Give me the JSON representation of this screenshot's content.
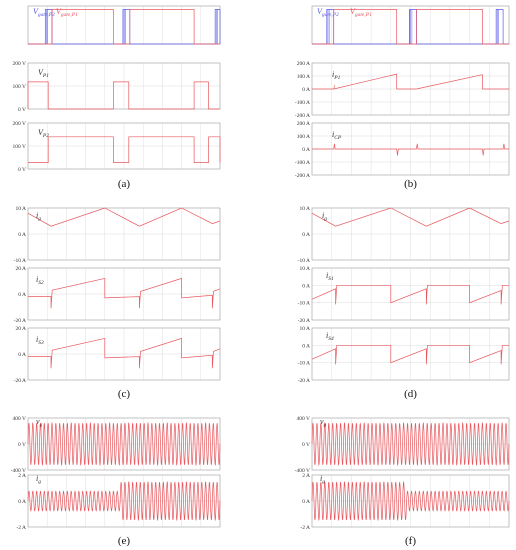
{
  "colors": {
    "trace": "#e8585e",
    "trace2": "#5a5ae6",
    "grid": "#c8c8c8",
    "frame": "#999999"
  },
  "chart_data": [
    {
      "type": "line",
      "caption": "(a)",
      "panels": [
        {
          "ticks": [],
          "traces": [
            {
              "color": "blue",
              "label": {
                "main": "V",
                "sub": "gate,P2"
              },
              "shape": "pulses",
              "base": 0,
              "high": 1,
              "cycles": [
                [
                  0.09,
                  0.125
                ],
                [
                  0.495,
                  0.53
                ],
                [
                  0.975,
                  1.0
                ]
              ]
            },
            {
              "color": "red",
              "label": {
                "main": "V",
                "sub": "gate,P1"
              },
              "shape": "pulses",
              "base": 0,
              "high": 1,
              "cycles": [
                [
                  0.125,
                  0.445
                ],
                [
                  0.53,
                  0.865
                ]
              ]
            }
          ],
          "ylim": [
            0,
            1.1
          ]
        },
        {
          "ticks": [
            "200 V",
            "100 V",
            "0 V"
          ],
          "ylim": [
            0,
            200
          ],
          "label": {
            "main": "V",
            "sub": "P1"
          },
          "traces": [
            {
              "color": "red",
              "shape": "pulses",
              "base": 0,
              "high": 118,
              "cycles": [
                [
                  0.0,
                  0.105
                ],
                [
                  0.445,
                  0.525
                ],
                [
                  0.865,
                  0.94
                ]
              ]
            }
          ]
        },
        {
          "ticks": [
            "200 V",
            "100 V",
            "0 V"
          ],
          "ylim": [
            0,
            200
          ],
          "label": {
            "main": "V",
            "sub": "P2"
          },
          "traces": [
            {
              "color": "red",
              "shape": "pulses",
              "base": 28,
              "high": 140,
              "cycles": [
                [
                  0.105,
                  0.445
                ],
                [
                  0.525,
                  0.865
                ],
                [
                  0.94,
                  1.0
                ]
              ]
            }
          ]
        }
      ]
    },
    {
      "type": "line",
      "caption": "(b)",
      "panels": [
        {
          "ticks": [],
          "traces": [
            {
              "color": "blue",
              "label": {
                "main": "V",
                "sub": "gate,P2"
              },
              "shape": "pulses",
              "base": 0,
              "high": 1,
              "cycles": [
                [
                  0.075,
                  0.11
                ],
                [
                  0.495,
                  0.53
                ],
                [
                  0.935,
                  0.97
                ]
              ]
            },
            {
              "color": "red",
              "label": {
                "main": "V",
                "sub": "gate,P1"
              },
              "shape": "pulses",
              "base": 0,
              "high": 1,
              "cycles": [
                [
                  0.11,
                  0.43
                ],
                [
                  0.53,
                  0.865
                ]
              ]
            }
          ],
          "ylim": [
            0,
            1.1
          ]
        },
        {
          "ticks": [
            "200 A",
            "100 A",
            "0 A",
            "-100 A",
            "-200 A"
          ],
          "ylim": [
            -200,
            200
          ],
          "label": {
            "main": "i",
            "sub": "P1"
          },
          "traces": [
            {
              "color": "red",
              "shape": "ramps",
              "segments": [
                [
                  0.11,
                  0.43,
                  0,
                  115
                ],
                [
                  0.53,
                  0.865,
                  0,
                  110
                ]
              ],
              "spikes": [
                [
                  0.11,
                  30
                ]
              ]
            }
          ]
        },
        {
          "ticks": [
            "200 A",
            "100 A",
            "0 A",
            "-100 A",
            "-200 A"
          ],
          "ylim": [
            -200,
            200
          ],
          "label": {
            "main": "i",
            "sub": "CP"
          },
          "traces": [
            {
              "color": "red",
              "shape": "spikes",
              "spikes": [
                [
                  0.11,
                  40
                ],
                [
                  0.43,
                  -50
                ],
                [
                  0.53,
                  40
                ],
                [
                  0.865,
                  -50
                ],
                [
                  0.97,
                  40
                ]
              ]
            }
          ]
        }
      ]
    },
    {
      "type": "line",
      "caption": "(c)",
      "panels": [
        {
          "ticks": [
            "10 A",
            "0 A",
            "-10 A"
          ],
          "ylim": [
            -10,
            10
          ],
          "label": {
            "main": "i",
            "sub": "g"
          },
          "traces": [
            {
              "color": "red",
              "shape": "tri",
              "points": [
                [
                  0,
                  8
                ],
                [
                  0.12,
                  3
                ],
                [
                  0.4,
                  10
                ],
                [
                  0.58,
                  3
                ],
                [
                  0.8,
                  10
                ],
                [
                  0.96,
                  4
                ],
                [
                  1.0,
                  5
                ]
              ]
            }
          ]
        },
        {
          "ticks": [
            "20 A",
            "0 A",
            "-20 A"
          ],
          "ylim": [
            -20,
            20
          ],
          "label": {
            "main": "i",
            "sub": "S2"
          },
          "traces": [
            {
              "color": "red",
              "shape": "saw",
              "segments": [
                [
                  0.12,
                  0.4,
                  3,
                  12
                ],
                [
                  0.4,
                  0.58,
                  -3,
                  -2
                ],
                [
                  0.58,
                  0.8,
                  2,
                  12
                ],
                [
                  0.8,
                  0.96,
                  -3,
                  -1
                ],
                [
                  0.96,
                  1.0,
                  2,
                  4
                ]
              ],
              "dips": [
                0.12,
                0.58,
                0.96
              ],
              "lead": -2
            }
          ]
        },
        {
          "ticks": [
            "20 A",
            "0 A",
            "-20 A"
          ],
          "ylim": [
            -20,
            20
          ],
          "label": {
            "main": "i",
            "sub": "S3"
          },
          "traces": [
            {
              "color": "red",
              "shape": "saw",
              "segments": [
                [
                  0.12,
                  0.4,
                  3,
                  12
                ],
                [
                  0.4,
                  0.58,
                  -3,
                  -2
                ],
                [
                  0.58,
                  0.8,
                  2,
                  12
                ],
                [
                  0.8,
                  0.96,
                  -3,
                  -1
                ],
                [
                  0.96,
                  1.0,
                  2,
                  4
                ]
              ],
              "dips": [
                0.12,
                0.58,
                0.96
              ],
              "lead": -2
            }
          ]
        }
      ]
    },
    {
      "type": "line",
      "caption": "(d)",
      "panels": [
        {
          "ticks": [
            "10 A",
            "0 A",
            "-10 A"
          ],
          "ylim": [
            -10,
            10
          ],
          "label": {
            "main": "i",
            "sub": "g"
          },
          "traces": [
            {
              "color": "red",
              "shape": "tri",
              "points": [
                [
                  0,
                  8
                ],
                [
                  0.12,
                  3
                ],
                [
                  0.4,
                  10
                ],
                [
                  0.58,
                  3
                ],
                [
                  0.8,
                  10
                ],
                [
                  0.96,
                  4
                ],
                [
                  1.0,
                  5
                ]
              ]
            }
          ]
        },
        {
          "ticks": [
            "10 A",
            "0 A",
            "-10 A",
            "-20 A"
          ],
          "ylim": [
            -20,
            10
          ],
          "label": {
            "main": "i",
            "sub": "S1"
          },
          "traces": [
            {
              "color": "red",
              "shape": "saw",
              "segments": [
                [
                  0.0,
                  0.12,
                  -8,
                  -2
                ],
                [
                  0.12,
                  0.4,
                  0,
                  0
                ],
                [
                  0.4,
                  0.58,
                  -10,
                  -2
                ],
                [
                  0.58,
                  0.8,
                  0,
                  0
                ],
                [
                  0.8,
                  0.96,
                  -10,
                  -3
                ],
                [
                  0.96,
                  1.0,
                  0,
                  0
                ]
              ],
              "dips": [
                0.12,
                0.58,
                0.96
              ],
              "lead": -8
            }
          ]
        },
        {
          "ticks": [
            "10 A",
            "0 A",
            "-10 A",
            "-20 A"
          ],
          "ylim": [
            -20,
            10
          ],
          "label": {
            "main": "i",
            "sub": "S4"
          },
          "traces": [
            {
              "color": "red",
              "shape": "saw",
              "segments": [
                [
                  0.0,
                  0.12,
                  -8,
                  -2
                ],
                [
                  0.12,
                  0.4,
                  0,
                  0
                ],
                [
                  0.4,
                  0.58,
                  -10,
                  -2
                ],
                [
                  0.58,
                  0.8,
                  0,
                  0
                ],
                [
                  0.8,
                  0.96,
                  -10,
                  -3
                ],
                [
                  0.96,
                  1.0,
                  0,
                  0
                ]
              ],
              "dips": [
                0.12,
                0.58,
                0.96
              ],
              "lead": -8
            }
          ]
        }
      ]
    },
    {
      "type": "line",
      "caption": "(e)",
      "panels": [
        {
          "ticks": [
            "400 V",
            "0 V",
            "-400 V"
          ],
          "ylim": [
            -400,
            400
          ],
          "label": {
            "main": "v",
            "sub": "g"
          },
          "traces": [
            {
              "color": "red",
              "shape": "sine",
              "cycles": 50,
              "amp": [
                [
                  0,
                  320
                ],
                [
                  1,
                  320
                ]
              ]
            }
          ]
        },
        {
          "ticks": [
            "2 A",
            "0 A",
            "-2 A"
          ],
          "ylim": [
            -2,
            2
          ],
          "label": {
            "main": "i",
            "sub": "g"
          },
          "traces": [
            {
              "color": "red",
              "shape": "sine",
              "cycles": 50,
              "amp": [
                [
                  0,
                  0.75
                ],
                [
                  0.48,
                  0.75
                ],
                [
                  0.48,
                  1.45
                ],
                [
                  1,
                  1.45
                ]
              ]
            }
          ]
        }
      ]
    },
    {
      "type": "line",
      "caption": "(f)",
      "panels": [
        {
          "ticks": [
            "400 V",
            "0 V",
            "-400 V"
          ],
          "ylim": [
            -400,
            400
          ],
          "label": {
            "main": "v",
            "sub": "g"
          },
          "traces": [
            {
              "color": "red",
              "shape": "sine",
              "cycles": 50,
              "amp": [
                [
                  0,
                  320
                ],
                [
                  1,
                  320
                ]
              ]
            }
          ]
        },
        {
          "ticks": [
            "2 A",
            "0 A",
            "-2 A"
          ],
          "ylim": [
            -2,
            2
          ],
          "label": {
            "main": "i",
            "sub": "g"
          },
          "traces": [
            {
              "color": "red",
              "shape": "sine",
              "cycles": 50,
              "amp": [
                [
                  0,
                  1.45
                ],
                [
                  0.48,
                  1.45
                ],
                [
                  0.48,
                  0.75
                ],
                [
                  1,
                  0.75
                ]
              ]
            }
          ]
        }
      ]
    }
  ]
}
